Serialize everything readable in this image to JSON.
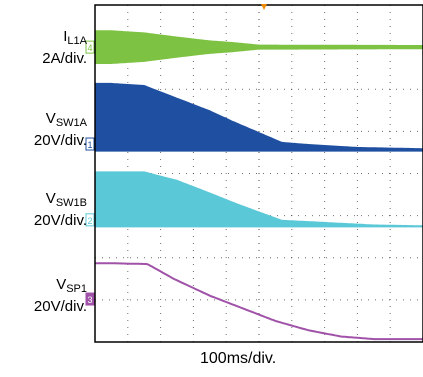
{
  "chart_data": {
    "type": "line",
    "grid": true,
    "x_divisions": 10,
    "y_divisions": 8,
    "xlabel": "100ms/div.",
    "channels": [
      {
        "marker": "4",
        "name_main": "I",
        "name_sub": "L1A",
        "scale": "2A/div.",
        "color": "#7dc242",
        "style": "dense",
        "offset_div": 1.0,
        "amp": [
          [
            0,
            0.4
          ],
          [
            0.5,
            0.4
          ],
          [
            1.5,
            0.35
          ],
          [
            2.5,
            0.25
          ],
          [
            3.5,
            0.16
          ],
          [
            4.2,
            0.12
          ],
          [
            5.0,
            0.06
          ],
          [
            10,
            0.05
          ]
        ]
      },
      {
        "marker": "1",
        "name_main": "V",
        "name_sub": "SW1A",
        "scale": "20V/div.",
        "color": "#1f4fa0",
        "style": "band",
        "base_div": 3.45,
        "top": [
          [
            0,
            1.6
          ],
          [
            0.5,
            1.6
          ],
          [
            1.5,
            1.55
          ],
          [
            2.5,
            1.25
          ],
          [
            3.5,
            0.95
          ],
          [
            4.2,
            0.7
          ],
          [
            5.7,
            0.2
          ],
          [
            6.5,
            0.15
          ],
          [
            8.0,
            0.08
          ],
          [
            10,
            0.05
          ]
        ]
      },
      {
        "marker": "2",
        "name_main": "V",
        "name_sub": "SW1B",
        "scale": "20V/div.",
        "color": "#5bc8d8",
        "style": "band",
        "base_div": 5.25,
        "top": [
          [
            0,
            1.3
          ],
          [
            0.5,
            1.3
          ],
          [
            1.5,
            1.3
          ],
          [
            2.5,
            1.1
          ],
          [
            3.5,
            0.8
          ],
          [
            4.3,
            0.55
          ],
          [
            5.7,
            0.15
          ],
          [
            7.0,
            0.1
          ],
          [
            8.5,
            0.04
          ],
          [
            10,
            0.02
          ]
        ]
      },
      {
        "marker": "3",
        "name_main": "V",
        "name_sub": "SP1",
        "scale": "20V/div.",
        "color": "#a052a8",
        "style": "line",
        "level": [
          [
            0,
            6.13
          ],
          [
            0.5,
            6.13
          ],
          [
            1.6,
            6.15
          ],
          [
            2.4,
            6.5
          ],
          [
            3.5,
            6.9
          ],
          [
            4.5,
            7.2
          ],
          [
            5.5,
            7.5
          ],
          [
            6.5,
            7.72
          ],
          [
            7.5,
            7.87
          ],
          [
            8.5,
            7.93
          ],
          [
            10,
            7.93
          ]
        ]
      }
    ]
  }
}
